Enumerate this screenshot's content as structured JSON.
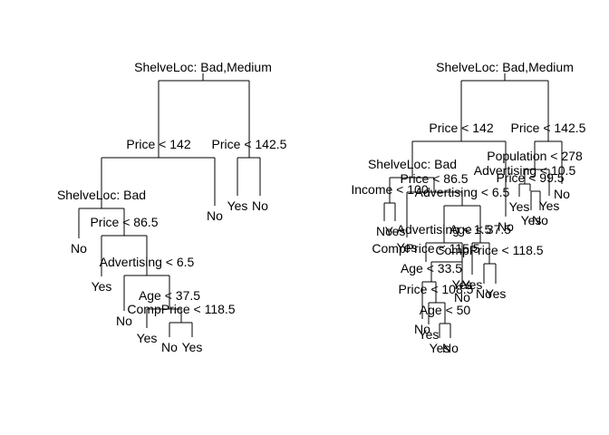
{
  "figure": {
    "description_free": true,
    "trees": [
      {
        "id": "left-tree",
        "root": {
          "split": "ShelveLoc: Bad,Medium",
          "left": {
            "split": "Price < 142",
            "left": {
              "split": "ShelveLoc: Bad",
              "left": {
                "leaf": "No"
              },
              "right": {
                "split": "Price < 86.5",
                "left": {
                  "leaf": "Yes"
                },
                "right": {
                  "split": "Advertising < 6.5",
                  "left": {
                    "leaf": "No"
                  },
                  "right": {
                    "split": "Age < 37.5",
                    "left": {
                      "leaf": "Yes"
                    },
                    "right": {
                      "split": "CompPrice < 118.5",
                      "left": {
                        "leaf": "No"
                      },
                      "right": {
                        "leaf": "Yes"
                      }
                    }
                  }
                }
              }
            },
            "right": {
              "leaf": "No"
            }
          },
          "right": {
            "split": "Price < 142.5",
            "left": {
              "leaf": "Yes"
            },
            "right": {
              "leaf": "No"
            }
          }
        }
      },
      {
        "id": "right-tree",
        "root": {
          "split": "ShelveLoc: Bad,Medium",
          "left": {
            "split": "Price < 142",
            "left": {
              "split": "ShelveLoc: Bad",
              "left": {
                "split": "Income < 100",
                "left": {
                  "leaf": "No"
                },
                "right": {
                  "leaf": "Yes"
                }
              },
              "right": {
                "split": "Price < 86.5",
                "left": {
                  "leaf": "Yes"
                },
                "right": {
                  "split": "Advertising < 6.5",
                  "left": {
                    "split": "Advertising < 1.5",
                    "left": {
                      "split": "CompPrice < 115.5",
                      "left": {
                        "split": "Age < 33.5",
                        "left": {
                          "leaf": "No"
                        },
                        "right": {
                          "split": "Price < 108.5",
                          "left": {
                            "leaf": "Yes"
                          },
                          "right": {
                            "split": "Age < 50",
                            "left": {
                              "leaf": "Yes"
                            },
                            "right": {
                              "leaf": "No"
                            }
                          }
                        }
                      },
                      "right": {
                        "leaf": "Yes"
                      }
                    },
                    "right": {
                      "leaf": "No"
                    }
                  },
                  "right": {
                    "split": "Age < 37.5",
                    "left": {
                      "leaf": "Yes"
                    },
                    "right": {
                      "split": "CompPrice < 118.5",
                      "left": {
                        "leaf": "No"
                      },
                      "right": {
                        "leaf": "Yes"
                      }
                    }
                  }
                }
              }
            },
            "right": {
              "leaf": "No"
            }
          },
          "right": {
            "split": "Price < 142.5",
            "left": {
              "split": "Population < 278",
              "left": {
                "split": "Advertising < 10.5",
                "left": {
                  "split": "Price < 99.5",
                  "left": {
                    "leaf": "Yes"
                  },
                  "right": {
                    "leaf": "No"
                  }
                },
                "right": {
                  "leaf": "Yes"
                }
              },
              "right": {
                "leaf": "Yes"
              }
            },
            "right": {
              "leaf": "No"
            }
          }
        }
      }
    ]
  }
}
